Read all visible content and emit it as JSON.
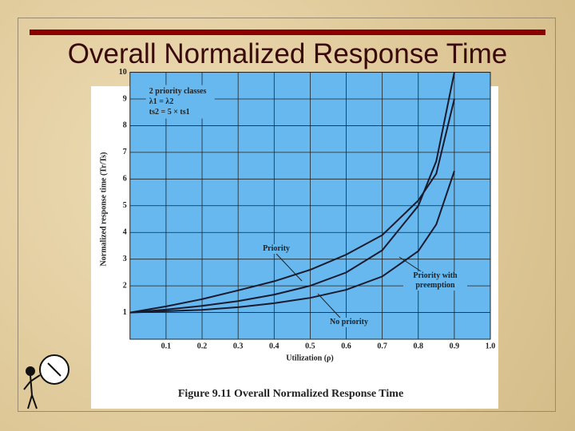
{
  "slide_title": "Overall Normalized Response Time",
  "chart_data": {
    "type": "line",
    "caption": "Figure 9.11 Overall Normalized Response Time",
    "x_label": "Utilization (ρ)",
    "y_label": "Normalized response time (Tr/Ts)",
    "info_box": [
      "2 priority classes",
      "λ1 = λ2",
      "ts2 = 5 × ts1"
    ],
    "x": [
      0,
      0.1,
      0.2,
      0.3,
      0.4,
      0.5,
      0.6,
      0.7,
      0.8,
      0.85,
      0.9
    ],
    "series": [
      {
        "name": "Priority",
        "color": "#1a1a2e",
        "values": [
          1,
          1.23,
          1.5,
          1.83,
          2.17,
          2.6,
          3.17,
          3.9,
          5.2,
          6.2,
          9
        ]
      },
      {
        "name": "No priority",
        "color": "#1a1a2e",
        "values": [
          1,
          1.11,
          1.25,
          1.43,
          1.67,
          2,
          2.5,
          3.33,
          5,
          6.67,
          10
        ]
      },
      {
        "name": "Priority with preemption",
        "color": "#1a1a2e",
        "values": [
          1,
          1.05,
          1.1,
          1.2,
          1.35,
          1.55,
          1.85,
          2.35,
          3.3,
          4.3,
          6.3
        ]
      }
    ],
    "xlim": [
      0,
      1
    ],
    "ylim": [
      0,
      10
    ],
    "xticks": [
      0.1,
      0.2,
      0.3,
      0.4,
      0.5,
      0.6,
      0.7,
      0.8,
      0.9,
      {
        "value": 1,
        "label": "1.0"
      }
    ],
    "yticks": [
      1,
      2,
      3,
      4,
      5,
      6,
      7,
      8,
      9,
      10
    ],
    "grid": true,
    "plot_color": "#66b8ee"
  }
}
